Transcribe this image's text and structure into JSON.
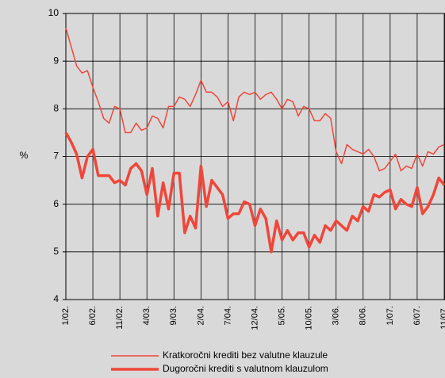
{
  "chart_data": {
    "type": "line",
    "categories": [
      "1/02.",
      null,
      null,
      null,
      null,
      "6/02.",
      null,
      null,
      null,
      null,
      "11/02.",
      null,
      null,
      null,
      null,
      "4/03.",
      null,
      null,
      null,
      null,
      "9/03.",
      null,
      null,
      null,
      null,
      "2/04.",
      null,
      null,
      null,
      null,
      "7/04.",
      null,
      null,
      null,
      null,
      "12/04.",
      null,
      null,
      null,
      null,
      "5/05.",
      null,
      null,
      null,
      null,
      "10/05.",
      null,
      null,
      null,
      null,
      "3/06.",
      null,
      null,
      null,
      null,
      "8/06.",
      null,
      null,
      null,
      null,
      "1/07.",
      null,
      null,
      null,
      null,
      "6/07.",
      null,
      null,
      null,
      null,
      "11/07."
    ],
    "series": [
      {
        "name": "Kratkoročni krediti bez valutne klauzule",
        "color": "#f0463a",
        "width": "thin",
        "values": [
          9.7,
          9.3,
          8.9,
          8.75,
          8.8,
          8.45,
          8.15,
          7.8,
          7.7,
          8.05,
          8.0,
          7.5,
          7.5,
          7.7,
          7.55,
          7.6,
          7.85,
          7.8,
          7.6,
          8.05,
          8.05,
          8.25,
          8.2,
          8.05,
          8.3,
          8.6,
          8.35,
          8.35,
          8.25,
          8.05,
          8.15,
          7.75,
          8.25,
          8.35,
          8.3,
          8.35,
          8.2,
          8.3,
          8.35,
          8.2,
          8.0,
          8.2,
          8.15,
          7.85,
          8.05,
          8.0,
          7.75,
          7.75,
          7.9,
          7.8,
          7.1,
          6.85,
          7.25,
          7.15,
          7.1,
          7.05,
          7.15,
          7.0,
          6.7,
          6.75,
          6.9,
          7.05,
          6.7,
          6.8,
          6.75,
          7.05,
          6.8,
          7.1,
          7.05,
          7.2,
          7.25
        ]
      },
      {
        "name": "Dugoročni krediti s valutnom klauzulom",
        "color": "#f0463a",
        "width": "thick",
        "values": [
          7.5,
          7.3,
          7.05,
          6.55,
          7.0,
          7.15,
          6.6,
          6.6,
          6.6,
          6.45,
          6.5,
          6.4,
          6.75,
          6.85,
          6.7,
          6.2,
          6.75,
          5.75,
          6.45,
          5.9,
          6.65,
          6.65,
          5.4,
          5.75,
          5.5,
          6.8,
          5.95,
          6.5,
          6.35,
          6.2,
          5.7,
          5.8,
          5.8,
          6.05,
          6.0,
          5.55,
          5.9,
          5.7,
          5.0,
          5.65,
          5.25,
          5.45,
          5.25,
          5.4,
          5.4,
          5.1,
          5.35,
          5.2,
          5.55,
          5.45,
          5.65,
          5.55,
          5.45,
          5.75,
          5.65,
          5.95,
          5.85,
          6.2,
          6.15,
          6.25,
          6.3,
          5.9,
          6.1,
          6.0,
          5.95,
          6.35,
          5.8,
          5.95,
          6.2,
          6.55,
          6.4
        ]
      }
    ],
    "ylabel": "%",
    "ylim": [
      4,
      10
    ],
    "yticks": [
      4,
      5,
      6,
      7,
      8,
      9,
      10
    ],
    "grid": true,
    "legend": "bottom"
  }
}
